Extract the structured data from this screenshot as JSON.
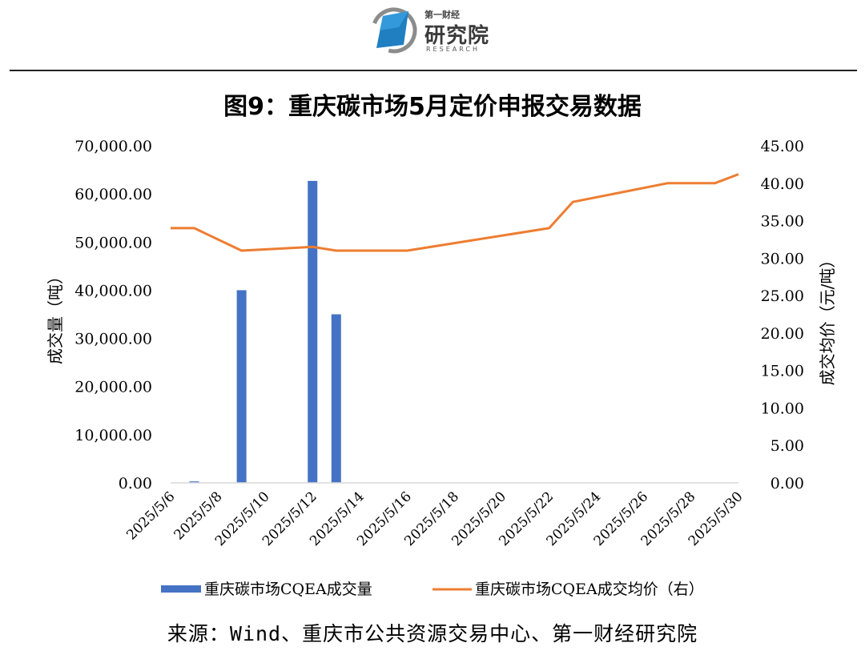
{
  "header": {
    "brand_small": "第一财经",
    "brand_main": "研究院",
    "brand_en": "RESEARCH"
  },
  "colors": {
    "bar": "#4472c4",
    "line": "#ed7d31",
    "logo_blue": "#1f7fc0"
  },
  "source_text": "来源：Wind、重庆市公共资源交易中心、第一财经研究院",
  "chart_data": {
    "type": "bar",
    "title": "图9：重庆碳市场5月定价申报交易数据",
    "ylabel": "成交量（吨）",
    "y2label": "成交均价（元/吨）",
    "ylim": [
      0,
      70000
    ],
    "y2lim": [
      0,
      45
    ],
    "yticks": [
      "0.00",
      "10,000.00",
      "20,000.00",
      "30,000.00",
      "40,000.00",
      "50,000.00",
      "60,000.00",
      "70,000.00"
    ],
    "y2ticks": [
      "0.00",
      "5.00",
      "10.00",
      "15.00",
      "20.00",
      "25.00",
      "30.00",
      "35.00",
      "40.00",
      "45.00"
    ],
    "x_ticks": [
      "2025/5/6",
      "2025/5/8",
      "2025/5/10",
      "2025/5/12",
      "2025/5/14",
      "2025/5/16",
      "2025/5/18",
      "2025/5/20",
      "2025/5/22",
      "2025/5/24",
      "2025/5/26",
      "2025/5/28",
      "2025/5/30"
    ],
    "grid": false,
    "legend_position": "bottom",
    "series": [
      {
        "name": "重庆碳市场CQEA成交量",
        "type": "bar",
        "axis": "left",
        "x": [
          "2025/5/7",
          "2025/5/9",
          "2025/5/12",
          "2025/5/13"
        ],
        "values": [
          300,
          40000,
          62700,
          35000
        ]
      },
      {
        "name": "重庆碳市场CQEA成交均价（右）",
        "type": "line",
        "axis": "right",
        "x": [
          "2025/5/6",
          "2025/5/7",
          "2025/5/9",
          "2025/5/12",
          "2025/5/13",
          "2025/5/16",
          "2025/5/22",
          "2025/5/23",
          "2025/5/27",
          "2025/5/29",
          "2025/5/30"
        ],
        "values": [
          34.0,
          34.0,
          31.0,
          31.5,
          31.0,
          31.0,
          34.0,
          37.5,
          40.0,
          40.0,
          41.2
        ]
      }
    ]
  }
}
